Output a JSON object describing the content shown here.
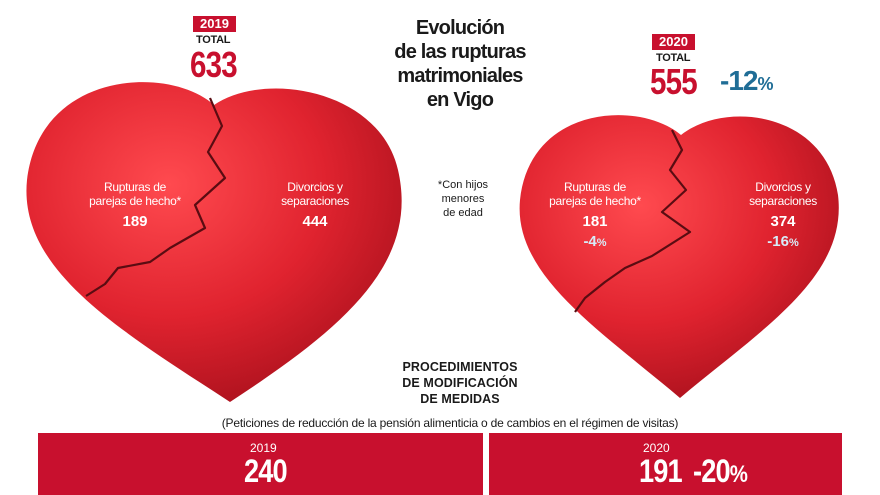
{
  "title": {
    "line1": "Evolución",
    "line2": "de las rupturas",
    "line3": "matrimoniales",
    "line4": "en Vigo"
  },
  "footnote": {
    "line1": "*Con hijos",
    "line2": "menores",
    "line3": "de edad"
  },
  "colors": {
    "heart_red": "#e0232f",
    "badge_red": "#c8102e",
    "pct_blue": "#1f6d96",
    "crack": "#5a0c12"
  },
  "chart_data": [
    {
      "type": "pie",
      "year": "2019",
      "total_label": "TOTAL",
      "total": 633,
      "slices": [
        {
          "label_line1": "Rupturas de",
          "label_line2": "parejas de hecho*",
          "value": 189
        },
        {
          "label_line1": "Divorcios y",
          "label_line2": "separaciones",
          "value": 444
        }
      ]
    },
    {
      "type": "pie",
      "year": "2020",
      "total_label": "TOTAL",
      "total": 555,
      "change": "-12",
      "slices": [
        {
          "label_line1": "Rupturas de",
          "label_line2": "parejas de hecho*",
          "value": 181,
          "change": "-4"
        },
        {
          "label_line1": "Divorcios y",
          "label_line2": "separaciones",
          "value": 374,
          "change": "-16"
        }
      ]
    },
    {
      "type": "table",
      "title_line1": "PROCEDIMIENTOS",
      "title_line2": "DE MODIFICACIÓN",
      "title_line3": "DE MEDIDAS",
      "subtitle": "(Peticiones de reducción de la pensión alimenticia o de cambios en el régimen de visitas)",
      "rows": [
        {
          "year": "2019",
          "value": 240
        },
        {
          "year": "2020",
          "value": 191,
          "change": "-20"
        }
      ]
    }
  ]
}
